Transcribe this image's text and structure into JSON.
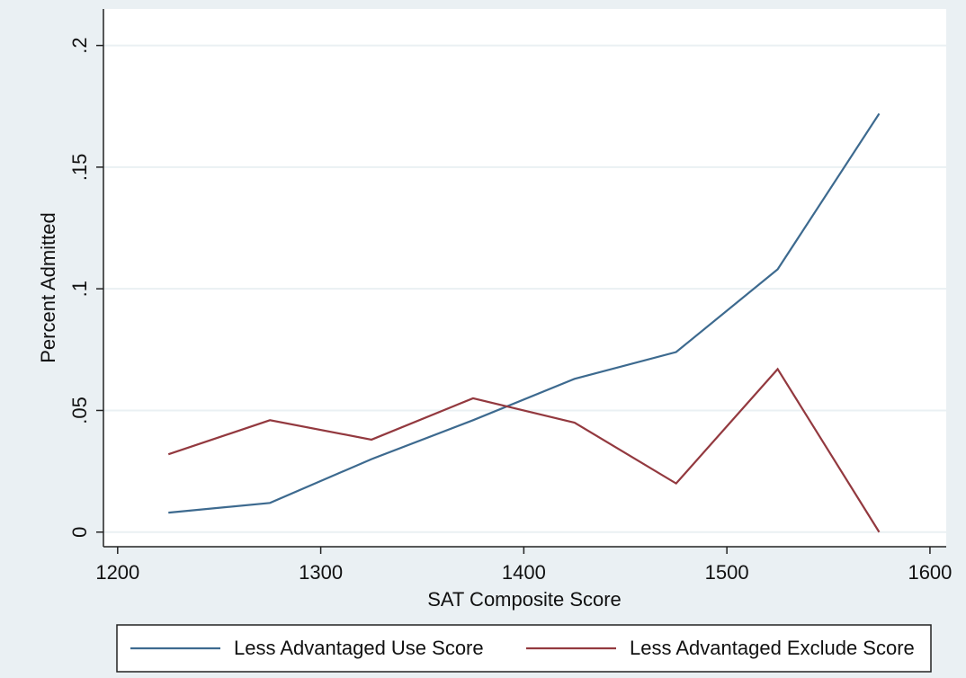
{
  "chart_data": {
    "type": "line",
    "x_label": "SAT Composite Score",
    "y_label": "Percent Admitted",
    "x": [
      1225,
      1275,
      1325,
      1375,
      1425,
      1475,
      1525,
      1575
    ],
    "series": [
      {
        "name": "Less Advantaged Use Score",
        "color": "#3d6a8f",
        "values": [
          0.008,
          0.012,
          0.03,
          0.046,
          0.063,
          0.074,
          0.108,
          0.172
        ]
      },
      {
        "name": "Less Advantaged Exclude Score",
        "color": "#93393f",
        "values": [
          0.032,
          0.046,
          0.038,
          0.055,
          0.045,
          0.02,
          0.067,
          0.0
        ]
      }
    ],
    "xlim": [
      1193,
      1608
    ],
    "xticks": [
      1200,
      1300,
      1400,
      1500,
      1600
    ],
    "ylim": [
      -0.006,
      0.215
    ],
    "yticks": [
      0,
      {
        "value": 0.05,
        "label": ".05"
      },
      {
        "value": 0.1,
        "label": ".1"
      },
      {
        "value": 0.15,
        "label": ".15"
      },
      {
        "value": 0.2,
        "label": ".2"
      }
    ],
    "grid": true,
    "legend": "bottom"
  }
}
